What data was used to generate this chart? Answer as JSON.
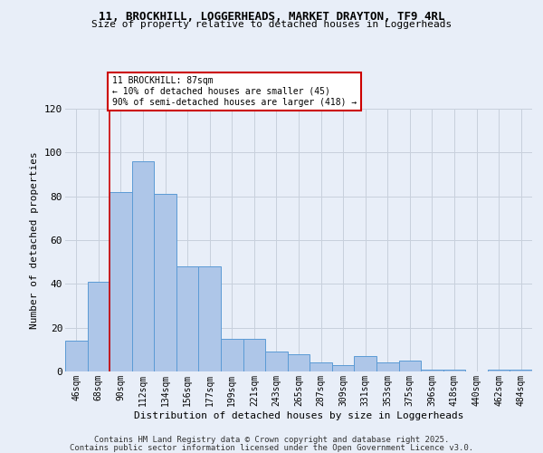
{
  "title_line1": "11, BROCKHILL, LOGGERHEADS, MARKET DRAYTON, TF9 4RL",
  "title_line2": "Size of property relative to detached houses in Loggerheads",
  "xlabel": "Distribution of detached houses by size in Loggerheads",
  "ylabel": "Number of detached properties",
  "bar_labels": [
    "46sqm",
    "68sqm",
    "90sqm",
    "112sqm",
    "134sqm",
    "156sqm",
    "177sqm",
    "199sqm",
    "221sqm",
    "243sqm",
    "265sqm",
    "287sqm",
    "309sqm",
    "331sqm",
    "353sqm",
    "375sqm",
    "396sqm",
    "418sqm",
    "440sqm",
    "462sqm",
    "484sqm"
  ],
  "bar_values": [
    14,
    41,
    82,
    96,
    81,
    48,
    48,
    15,
    15,
    9,
    8,
    4,
    3,
    7,
    4,
    5,
    1,
    1,
    0,
    1,
    1
  ],
  "bar_color": "#aec6e8",
  "bar_edge_color": "#5b9bd5",
  "annotation_text": "11 BROCKHILL: 87sqm\n← 10% of detached houses are smaller (45)\n90% of semi-detached houses are larger (418) →",
  "annotation_box_color": "white",
  "annotation_box_edge_color": "#cc0000",
  "vline_color": "#cc0000",
  "vline_x_index": 2,
  "ylim": [
    0,
    120
  ],
  "yticks": [
    0,
    20,
    40,
    60,
    80,
    100,
    120
  ],
  "grid_color": "#c8d0dc",
  "bg_color": "#e8eef8",
  "footer_line1": "Contains HM Land Registry data © Crown copyright and database right 2025.",
  "footer_line2": "Contains public sector information licensed under the Open Government Licence v3.0."
}
